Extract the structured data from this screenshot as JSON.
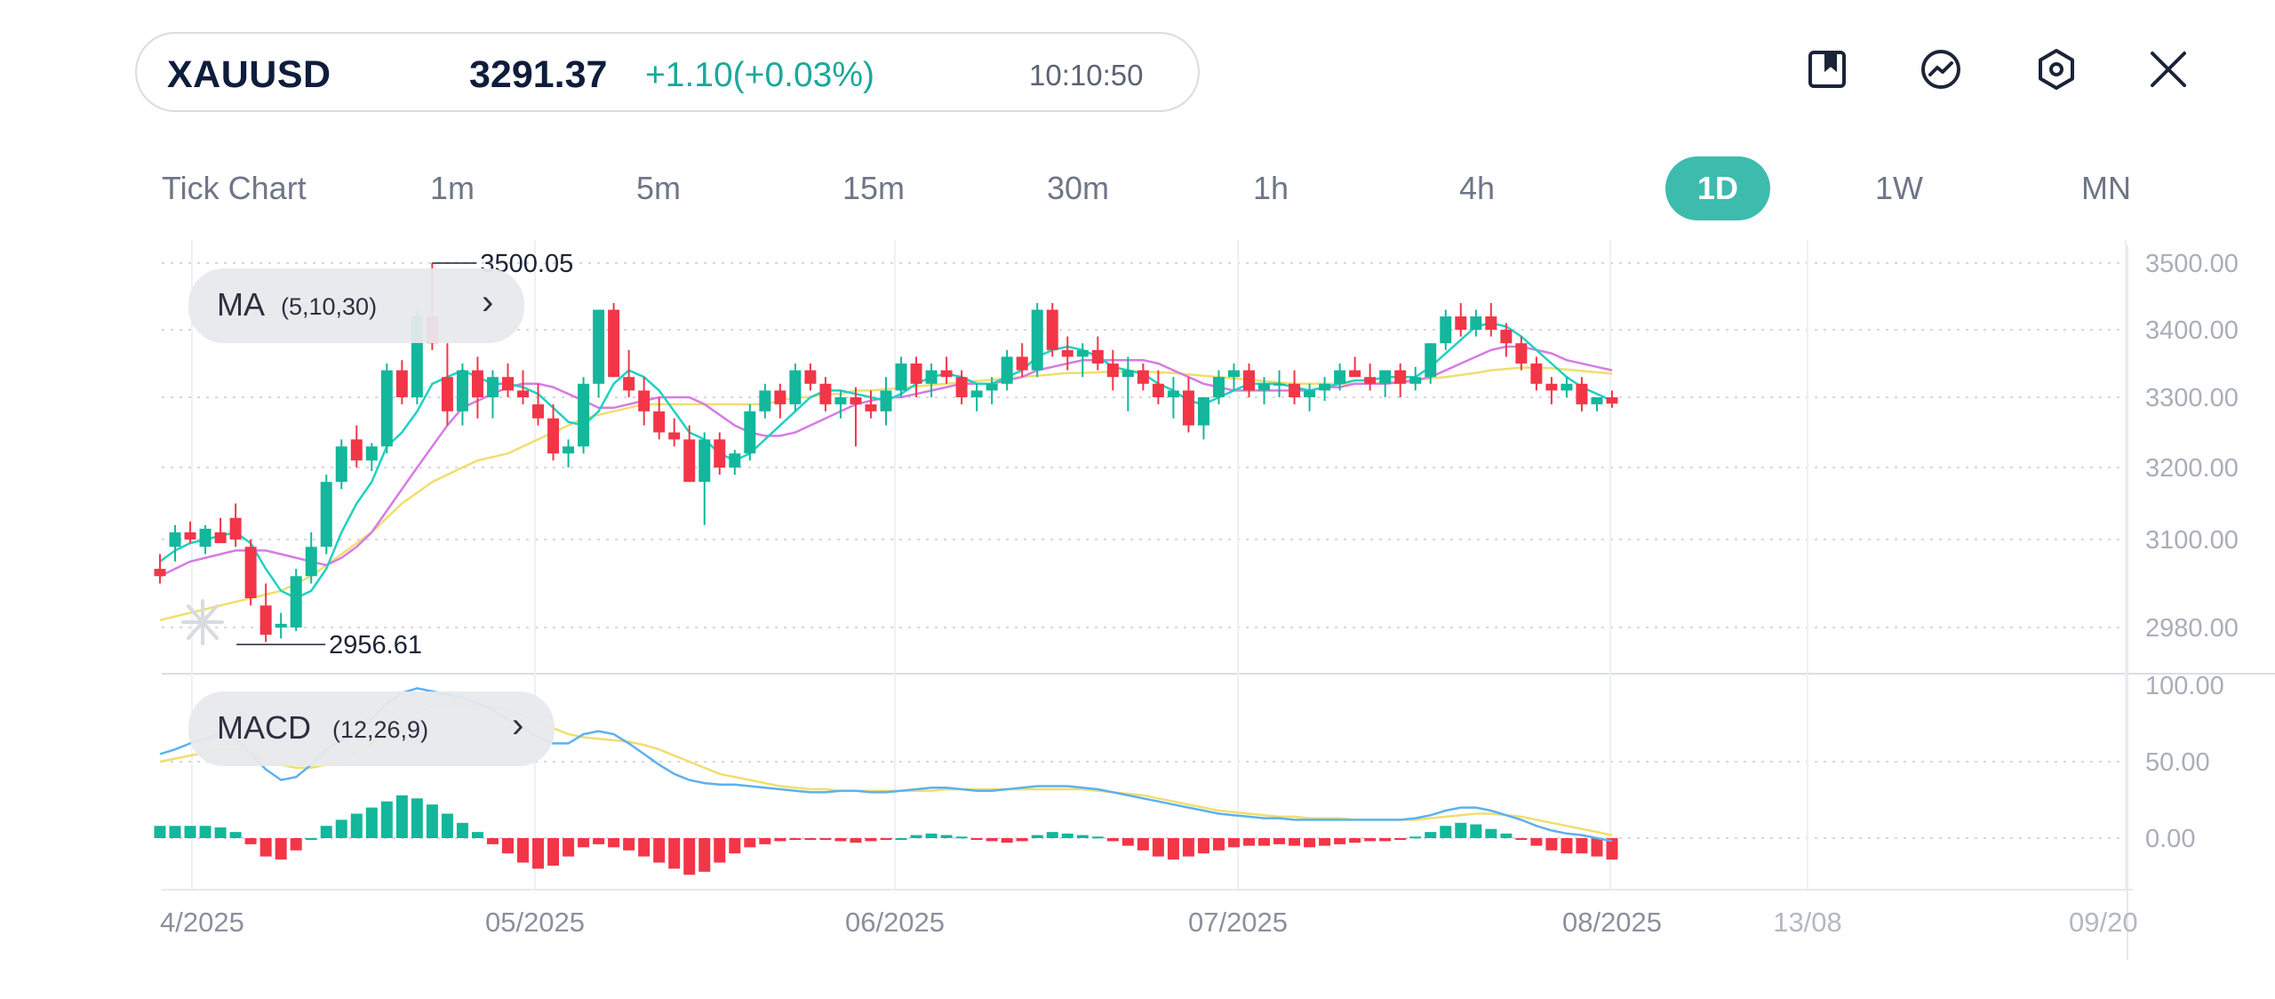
{
  "header": {
    "symbol": "XAUUSD",
    "price": "3291.37",
    "change": "+1.10(+0.03%)",
    "time": "10:10:50"
  },
  "toolbar": {
    "icons": [
      "bookmark-icon",
      "trend-chart-icon",
      "settings-hexagon-icon",
      "close-icon"
    ]
  },
  "timeframes": [
    "Tick Chart",
    "1m",
    "5m",
    "15m",
    "30m",
    "1h",
    "4h",
    "1D",
    "1W",
    "MN"
  ],
  "active_timeframe": "1D",
  "indicators": {
    "ma": {
      "name": "MA",
      "params": "(5,10,30)"
    },
    "macd": {
      "name": "MACD",
      "params": "(12,26,9)"
    }
  },
  "colors": {
    "up": "#13b79b",
    "down": "#f23648",
    "ma5": "#1fd1c2",
    "ma10": "#d77be3",
    "ma30": "#f0de6e",
    "dif": "#5eb0ee",
    "dea": "#f0de6e",
    "accent": "#3dbcae"
  },
  "chart_data": {
    "type": "candlestick",
    "price_axis": {
      "ticks": [
        {
          "value": 3500,
          "label": "3500.00"
        },
        {
          "value": 3400,
          "label": "3400.00"
        },
        {
          "value": 3300,
          "label": "3300.00"
        },
        {
          "value": 3200,
          "label": "3200.00"
        },
        {
          "value": 3100,
          "label": "3100.00"
        },
        {
          "value": 2980,
          "label": "2980.00"
        }
      ]
    },
    "macd_axis": {
      "ticks": [
        {
          "value": 100,
          "label": "100.00"
        },
        {
          "value": 50,
          "label": "50.00"
        },
        {
          "value": 0,
          "label": "0.00"
        }
      ]
    },
    "x_labels": [
      "4/2025",
      "05/2025",
      "06/2025",
      "07/2025",
      "08/2025",
      "13/08",
      "09/20"
    ],
    "annotations": {
      "high": "3500.05",
      "low": "2956.61"
    },
    "candles": [
      [
        3060,
        3080,
        3040,
        3050
      ],
      [
        3090,
        3120,
        3070,
        3110
      ],
      [
        3110,
        3125,
        3095,
        3100
      ],
      [
        3090,
        3120,
        3080,
        3115
      ],
      [
        3110,
        3130,
        3095,
        3095
      ],
      [
        3130,
        3150,
        3090,
        3100
      ],
      [
        3090,
        3100,
        3010,
        3020
      ],
      [
        3010,
        3040,
        2960,
        2970
      ],
      [
        2980,
        3000,
        2965,
        2985
      ],
      [
        2980,
        3060,
        2975,
        3050
      ],
      [
        3050,
        3110,
        3040,
        3090
      ],
      [
        3090,
        3190,
        3080,
        3180
      ],
      [
        3180,
        3240,
        3170,
        3230
      ],
      [
        3240,
        3260,
        3200,
        3210
      ],
      [
        3210,
        3235,
        3195,
        3230
      ],
      [
        3230,
        3350,
        3220,
        3340
      ],
      [
        3340,
        3355,
        3290,
        3300
      ],
      [
        3300,
        3430,
        3290,
        3420
      ],
      [
        3420,
        3500,
        3370,
        3380
      ],
      [
        3330,
        3380,
        3260,
        3280
      ],
      [
        3280,
        3350,
        3260,
        3340
      ],
      [
        3340,
        3360,
        3270,
        3300
      ],
      [
        3300,
        3340,
        3270,
        3330
      ],
      [
        3330,
        3350,
        3300,
        3310
      ],
      [
        3310,
        3340,
        3290,
        3300
      ],
      [
        3290,
        3320,
        3260,
        3270
      ],
      [
        3270,
        3290,
        3210,
        3220
      ],
      [
        3220,
        3240,
        3200,
        3230
      ],
      [
        3230,
        3330,
        3220,
        3320
      ],
      [
        3320,
        3430,
        3300,
        3430
      ],
      [
        3430,
        3440,
        3330,
        3330
      ],
      [
        3330,
        3370,
        3300,
        3310
      ],
      [
        3310,
        3330,
        3260,
        3280
      ],
      [
        3280,
        3300,
        3240,
        3250
      ],
      [
        3250,
        3270,
        3230,
        3240
      ],
      [
        3240,
        3260,
        3180,
        3180
      ],
      [
        3180,
        3250,
        3120,
        3240
      ],
      [
        3240,
        3250,
        3190,
        3200
      ],
      [
        3200,
        3225,
        3190,
        3220
      ],
      [
        3220,
        3290,
        3210,
        3280
      ],
      [
        3280,
        3320,
        3270,
        3310
      ],
      [
        3310,
        3320,
        3270,
        3290
      ],
      [
        3290,
        3350,
        3280,
        3340
      ],
      [
        3340,
        3350,
        3310,
        3320
      ],
      [
        3320,
        3330,
        3280,
        3290
      ],
      [
        3290,
        3310,
        3270,
        3300
      ],
      [
        3300,
        3315,
        3230,
        3290
      ],
      [
        3290,
        3310,
        3270,
        3280
      ],
      [
        3280,
        3330,
        3260,
        3310
      ],
      [
        3310,
        3360,
        3300,
        3350
      ],
      [
        3350,
        3360,
        3300,
        3320
      ],
      [
        3320,
        3350,
        3300,
        3340
      ],
      [
        3340,
        3360,
        3320,
        3330
      ],
      [
        3330,
        3340,
        3290,
        3300
      ],
      [
        3300,
        3320,
        3280,
        3310
      ],
      [
        3310,
        3330,
        3290,
        3320
      ],
      [
        3320,
        3370,
        3310,
        3360
      ],
      [
        3360,
        3380,
        3330,
        3340
      ],
      [
        3340,
        3440,
        3330,
        3430
      ],
      [
        3430,
        3440,
        3360,
        3370
      ],
      [
        3370,
        3390,
        3340,
        3360
      ],
      [
        3360,
        3380,
        3330,
        3370
      ],
      [
        3370,
        3390,
        3340,
        3350
      ],
      [
        3350,
        3370,
        3310,
        3330
      ],
      [
        3330,
        3360,
        3280,
        3340
      ],
      [
        3340,
        3350,
        3310,
        3320
      ],
      [
        3320,
        3340,
        3290,
        3300
      ],
      [
        3300,
        3330,
        3270,
        3310
      ],
      [
        3310,
        3330,
        3250,
        3260
      ],
      [
        3260,
        3300,
        3240,
        3300
      ],
      [
        3300,
        3340,
        3290,
        3330
      ],
      [
        3330,
        3350,
        3310,
        3340
      ],
      [
        3340,
        3350,
        3300,
        3310
      ],
      [
        3310,
        3330,
        3290,
        3320
      ],
      [
        3320,
        3340,
        3300,
        3320
      ],
      [
        3320,
        3340,
        3290,
        3300
      ],
      [
        3300,
        3320,
        3280,
        3310
      ],
      [
        3310,
        3330,
        3295,
        3320
      ],
      [
        3320,
        3350,
        3310,
        3340
      ],
      [
        3340,
        3360,
        3330,
        3330
      ],
      [
        3330,
        3350,
        3310,
        3320
      ],
      [
        3320,
        3340,
        3300,
        3340
      ],
      [
        3340,
        3350,
        3300,
        3320
      ],
      [
        3320,
        3345,
        3310,
        3330
      ],
      [
        3330,
        3380,
        3320,
        3380
      ],
      [
        3380,
        3430,
        3370,
        3420
      ],
      [
        3420,
        3440,
        3390,
        3400
      ],
      [
        3400,
        3430,
        3390,
        3420
      ],
      [
        3420,
        3440,
        3390,
        3400
      ],
      [
        3400,
        3410,
        3360,
        3380
      ],
      [
        3380,
        3390,
        3340,
        3350
      ],
      [
        3350,
        3360,
        3310,
        3320
      ],
      [
        3320,
        3330,
        3290,
        3310
      ],
      [
        3310,
        3330,
        3300,
        3320
      ],
      [
        3320,
        3330,
        3280,
        3290
      ],
      [
        3290,
        3300,
        3280,
        3300
      ],
      [
        3300,
        3310,
        3285,
        3291
      ]
    ],
    "ma5": [
      3070,
      3085,
      3095,
      3100,
      3105,
      3110,
      3095,
      3060,
      3030,
      3020,
      3030,
      3060,
      3110,
      3150,
      3180,
      3230,
      3250,
      3280,
      3320,
      3330,
      3340,
      3330,
      3320,
      3320,
      3315,
      3305,
      3285,
      3265,
      3260,
      3280,
      3320,
      3340,
      3330,
      3310,
      3280,
      3250,
      3240,
      3220,
      3210,
      3220,
      3240,
      3260,
      3280,
      3300,
      3310,
      3310,
      3305,
      3300,
      3295,
      3305,
      3320,
      3330,
      3335,
      3330,
      3320,
      3320,
      3330,
      3340,
      3360,
      3370,
      3375,
      3370,
      3360,
      3345,
      3340,
      3335,
      3320,
      3310,
      3295,
      3290,
      3300,
      3310,
      3320,
      3320,
      3320,
      3315,
      3310,
      3315,
      3320,
      3325,
      3325,
      3330,
      3330,
      3330,
      3345,
      3365,
      3385,
      3405,
      3410,
      3405,
      3390,
      3370,
      3350,
      3330,
      3315,
      3305,
      3295
    ],
    "ma10": [
      3050,
      3060,
      3070,
      3075,
      3080,
      3085,
      3085,
      3085,
      3080,
      3075,
      3070,
      3065,
      3075,
      3090,
      3110,
      3140,
      3170,
      3200,
      3230,
      3260,
      3285,
      3295,
      3305,
      3315,
      3320,
      3320,
      3315,
      3305,
      3295,
      3285,
      3285,
      3290,
      3295,
      3300,
      3300,
      3300,
      3290,
      3275,
      3260,
      3250,
      3245,
      3245,
      3250,
      3260,
      3270,
      3280,
      3290,
      3295,
      3300,
      3300,
      3305,
      3310,
      3315,
      3320,
      3320,
      3320,
      3325,
      3330,
      3340,
      3345,
      3350,
      3355,
      3355,
      3355,
      3355,
      3355,
      3350,
      3340,
      3330,
      3320,
      3315,
      3310,
      3310,
      3310,
      3310,
      3310,
      3310,
      3315,
      3315,
      3320,
      3320,
      3320,
      3322,
      3325,
      3330,
      3340,
      3350,
      3360,
      3370,
      3375,
      3375,
      3370,
      3365,
      3355,
      3350,
      3345,
      3340
    ],
    "ma30": [
      2990,
      2995,
      3000,
      3005,
      3010,
      3015,
      3020,
      3025,
      3030,
      3040,
      3050,
      3065,
      3080,
      3095,
      3110,
      3130,
      3150,
      3165,
      3180,
      3190,
      3200,
      3210,
      3215,
      3220,
      3230,
      3240,
      3250,
      3260,
      3270,
      3275,
      3280,
      3285,
      3290,
      3290,
      3290,
      3290,
      3290,
      3290,
      3290,
      3290,
      3290,
      3295,
      3300,
      3300,
      3305,
      3305,
      3310,
      3310,
      3312,
      3314,
      3316,
      3318,
      3320,
      3322,
      3324,
      3326,
      3328,
      3330,
      3332,
      3334,
      3336,
      3336,
      3337,
      3338,
      3338,
      3338,
      3337,
      3336,
      3334,
      3332,
      3330,
      3328,
      3326,
      3324,
      3322,
      3320,
      3320,
      3320,
      3320,
      3320,
      3320,
      3322,
      3324,
      3326,
      3328,
      3330,
      3333,
      3336,
      3340,
      3342,
      3344,
      3344,
      3343,
      3341,
      3339,
      3337,
      3335
    ],
    "dif": [
      55,
      58,
      62,
      65,
      68,
      65,
      55,
      45,
      38,
      40,
      48,
      58,
      64,
      70,
      78,
      88,
      95,
      98,
      96,
      94,
      92,
      88,
      84,
      78,
      72,
      66,
      62,
      62,
      68,
      70,
      68,
      62,
      55,
      48,
      42,
      38,
      36,
      35,
      35,
      34,
      33,
      32,
      31,
      30,
      30,
      31,
      31,
      30,
      30,
      31,
      32,
      33,
      33,
      32,
      31,
      31,
      32,
      33,
      34,
      34,
      34,
      33,
      32,
      30,
      28,
      26,
      24,
      22,
      20,
      18,
      16,
      15,
      14,
      13,
      13,
      12,
      12,
      12,
      12,
      12,
      12,
      12,
      12,
      13,
      15,
      18,
      20,
      20,
      18,
      15,
      12,
      8,
      5,
      3,
      2,
      0,
      -2
    ],
    "dea": [
      50,
      52,
      54,
      56,
      58,
      58,
      56,
      52,
      48,
      46,
      46,
      48,
      52,
      57,
      62,
      68,
      75,
      82,
      86,
      88,
      88,
      87,
      86,
      84,
      80,
      76,
      72,
      68,
      66,
      65,
      64,
      63,
      61,
      58,
      54,
      50,
      46,
      42,
      40,
      38,
      36,
      34,
      33,
      32,
      32,
      31,
      31,
      31,
      31,
      31,
      31,
      31,
      32,
      32,
      32,
      32,
      32,
      32,
      32,
      32,
      32,
      32,
      31,
      30,
      29,
      28,
      26,
      24,
      22,
      20,
      18,
      17,
      16,
      15,
      14,
      14,
      13,
      13,
      13,
      12,
      12,
      12,
      12,
      12,
      13,
      14,
      15,
      16,
      16,
      15,
      14,
      12,
      10,
      8,
      6,
      4,
      2
    ],
    "macd_hist": [
      8,
      8,
      8,
      8,
      7,
      4,
      -4,
      -12,
      -14,
      -8,
      0,
      8,
      12,
      16,
      20,
      24,
      28,
      26,
      22,
      16,
      10,
      4,
      -4,
      -10,
      -16,
      -20,
      -18,
      -12,
      -6,
      -4,
      -6,
      -8,
      -12,
      -16,
      -20,
      -24,
      -22,
      -16,
      -10,
      -6,
      -4,
      -2,
      -1,
      -1,
      -1,
      -2,
      -3,
      -2,
      -1,
      0,
      2,
      3,
      2,
      1,
      -1,
      -2,
      -3,
      -2,
      2,
      4,
      3,
      2,
      1,
      -2,
      -5,
      -8,
      -12,
      -14,
      -12,
      -10,
      -8,
      -6,
      -5,
      -5,
      -4,
      -5,
      -6,
      -5,
      -4,
      -3,
      -2,
      -2,
      -1,
      1,
      4,
      8,
      10,
      9,
      6,
      3,
      -1,
      -5,
      -8,
      -10,
      -10,
      -12,
      -14
    ]
  }
}
